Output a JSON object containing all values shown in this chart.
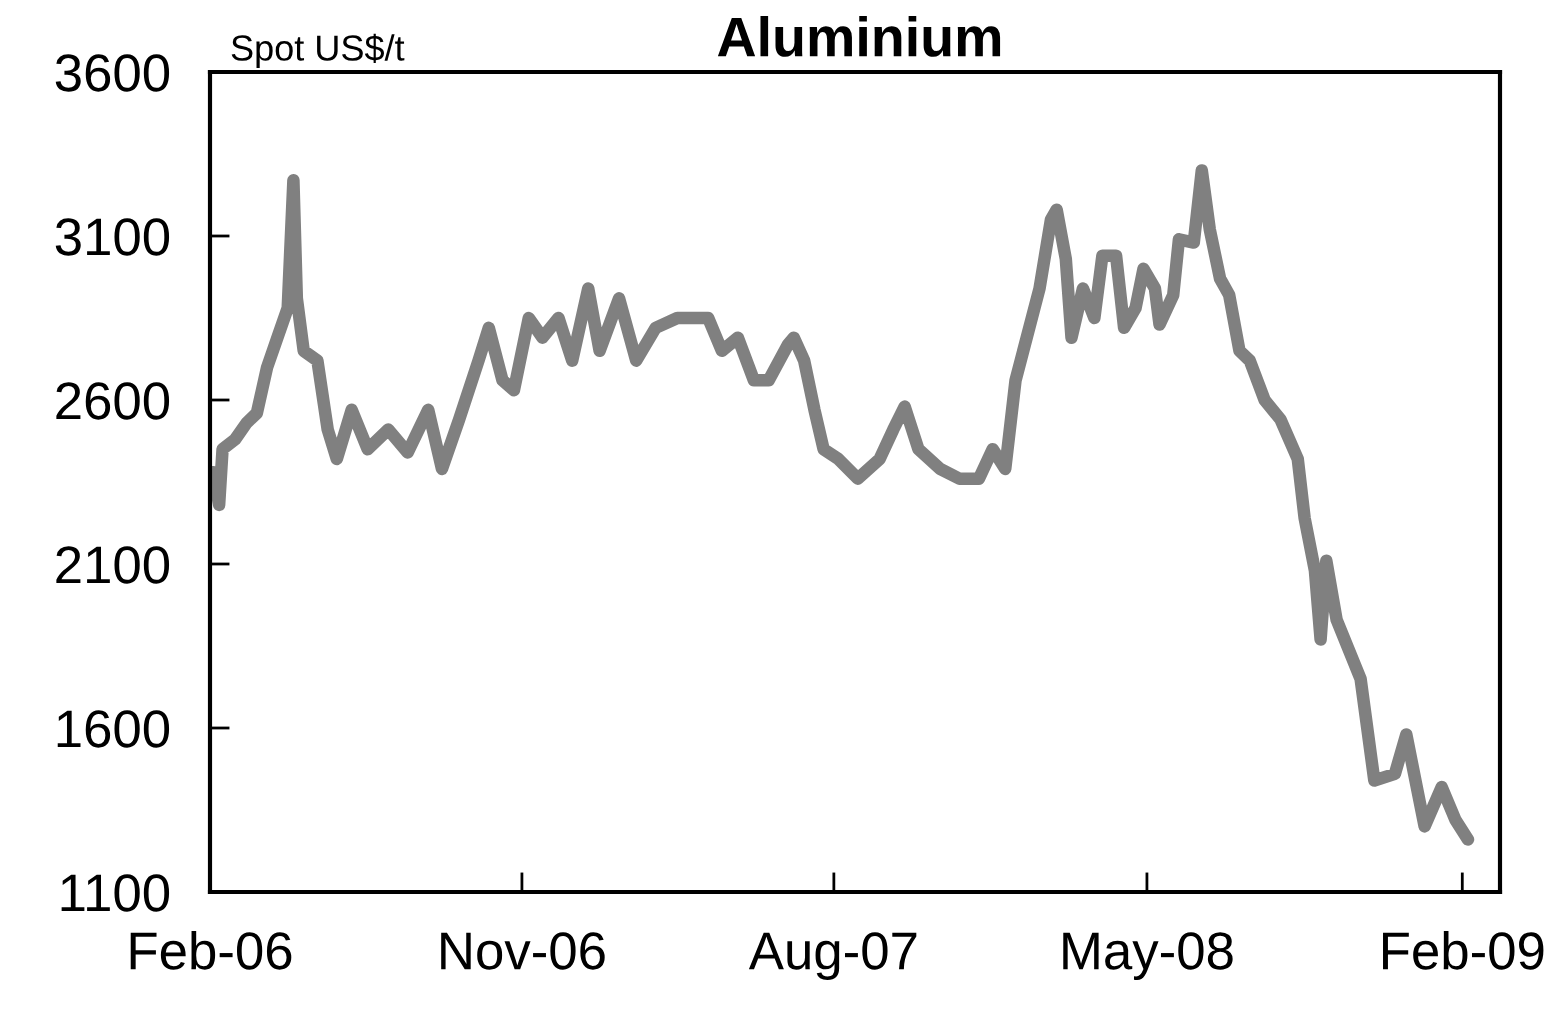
{
  "chart_data": {
    "type": "line",
    "title": "Aluminium",
    "ylabel": "Spot US$/t",
    "xlim": [
      "2006-02-01",
      "2009-03-06"
    ],
    "ylim": [
      1100,
      3600
    ],
    "yticks": [
      1100,
      1600,
      2100,
      2600,
      3100,
      3600
    ],
    "xticks": [
      {
        "value": "2006-02-01",
        "label": "Feb-06"
      },
      {
        "value": "2006-11-01",
        "label": "Nov-06"
      },
      {
        "value": "2007-08-01",
        "label": "Aug-07"
      },
      {
        "value": "2008-05-01",
        "label": "May-08"
      },
      {
        "value": "2009-02-01",
        "label": "Feb-09"
      }
    ],
    "grid": false,
    "legend": false,
    "marker": "none",
    "line_style": "solid",
    "series": [
      {
        "color": "#808080",
        "x": [
          "2006-02-04",
          "2006-02-09",
          "2006-02-12",
          "2006-02-23",
          "2006-03-05",
          "2006-03-14",
          "2006-03-23",
          "2006-04-01",
          "2006-04-10",
          "2006-04-15",
          "2006-04-18",
          "2006-04-24",
          "2006-05-06",
          "2006-05-15",
          "2006-05-23",
          "2006-06-05",
          "2006-06-19",
          "2006-07-07",
          "2006-07-24",
          "2006-08-11",
          "2006-08-23",
          "2006-09-07",
          "2006-09-24",
          "2006-10-03",
          "2006-10-15",
          "2006-10-25",
          "2006-11-07",
          "2006-11-19",
          "2006-12-03",
          "2006-12-15",
          "2006-12-29",
          "2007-01-08",
          "2007-01-25",
          "2007-02-09",
          "2007-02-26",
          "2007-03-17",
          "2007-04-13",
          "2007-04-25",
          "2007-05-09",
          "2007-05-23",
          "2007-06-05",
          "2007-06-22",
          "2007-06-27",
          "2007-07-06",
          "2007-07-15",
          "2007-07-23",
          "2007-08-05",
          "2007-08-22",
          "2007-09-10",
          "2007-09-22",
          "2007-10-02",
          "2007-10-14",
          "2007-11-02",
          "2007-11-19",
          "2007-12-06",
          "2007-12-18",
          "2007-12-29",
          "2008-01-07",
          "2008-01-19",
          "2008-01-28",
          "2008-02-07",
          "2008-02-12",
          "2008-02-20",
          "2008-02-25",
          "2008-03-06",
          "2008-03-16",
          "2008-03-23",
          "2008-04-04",
          "2008-04-11",
          "2008-04-21",
          "2008-04-28",
          "2008-05-08",
          "2008-05-12",
          "2008-05-24",
          "2008-05-29",
          "2008-06-11",
          "2008-06-18",
          "2008-06-25",
          "2008-07-04",
          "2008-07-12",
          "2008-07-21",
          "2008-07-30",
          "2008-08-12",
          "2008-08-26",
          "2008-09-10",
          "2008-09-16",
          "2008-09-25",
          "2008-09-30",
          "2008-10-05",
          "2008-10-14",
          "2008-11-04",
          "2008-11-16",
          "2008-12-04",
          "2008-12-14",
          "2008-12-30",
          "2009-01-14",
          "2009-01-26",
          "2009-02-06"
        ],
        "values": [
          2380,
          2280,
          2450,
          2480,
          2530,
          2560,
          2700,
          2790,
          2880,
          3270,
          2910,
          2750,
          2720,
          2510,
          2420,
          2570,
          2450,
          2510,
          2440,
          2570,
          2390,
          2540,
          2720,
          2820,
          2660,
          2630,
          2850,
          2790,
          2850,
          2720,
          2940,
          2750,
          2910,
          2720,
          2820,
          2850,
          2850,
          2750,
          2790,
          2660,
          2660,
          2770,
          2790,
          2720,
          2570,
          2450,
          2420,
          2360,
          2420,
          2510,
          2580,
          2450,
          2390,
          2360,
          2360,
          2450,
          2390,
          2660,
          2820,
          2940,
          3150,
          3180,
          3030,
          2790,
          2940,
          2850,
          3040,
          3040,
          2820,
          2880,
          3000,
          2940,
          2830,
          2920,
          3090,
          3080,
          3300,
          3120,
          2970,
          2920,
          2750,
          2720,
          2600,
          2540,
          2420,
          2240,
          2080,
          1870,
          2110,
          1930,
          1750,
          1440,
          1460,
          1580,
          1300,
          1420,
          1320,
          1260
        ]
      }
    ]
  }
}
